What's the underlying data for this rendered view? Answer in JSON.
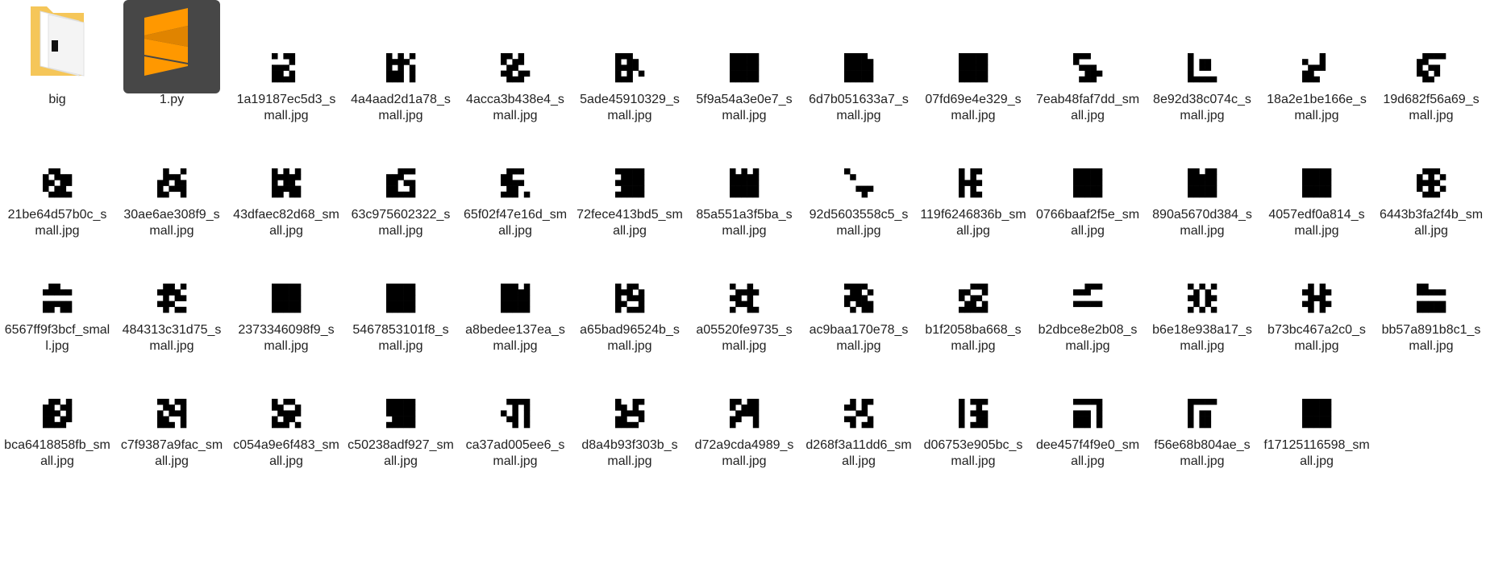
{
  "colors": {
    "app_tile": "#474747",
    "app_accent": "#ff9800",
    "folder": "#f5c659"
  },
  "items": [
    {
      "label": "big",
      "icon": "folder-icon",
      "pattern": []
    },
    {
      "label": "1.py",
      "icon": "sublime-text-icon",
      "pattern": []
    },
    {
      "label": "1a19187ec5d3_small.jpg",
      "icon": "qr-thumbnail-icon",
      "pattern": [
        1,
        0,
        1,
        1,
        0,
        0,
        0,
        0,
        1,
        0,
        1,
        1,
        1,
        0,
        0,
        1,
        1,
        0,
        1,
        0,
        1,
        1,
        1,
        1,
        0
      ]
    },
    {
      "label": "4a4aad2d1a78_small.jpg",
      "icon": "qr-thumbnail-icon",
      "pattern": [
        1,
        0,
        1,
        0,
        1,
        1,
        1,
        1,
        1,
        0,
        1,
        0,
        1,
        0,
        1,
        1,
        1,
        1,
        0,
        1,
        1,
        1,
        1,
        0,
        1
      ]
    },
    {
      "label": "4acca3b438e4_small.jpg",
      "icon": "qr-thumbnail-icon",
      "pattern": [
        1,
        1,
        0,
        1,
        0,
        1,
        0,
        1,
        1,
        0,
        0,
        1,
        1,
        0,
        0,
        1,
        1,
        0,
        1,
        1,
        0,
        1,
        1,
        1,
        0
      ]
    },
    {
      "label": "5ade45910329_small.jpg",
      "icon": "qr-thumbnail-icon",
      "pattern": [
        1,
        1,
        1,
        0,
        0,
        1,
        0,
        1,
        1,
        0,
        1,
        1,
        1,
        1,
        0,
        1,
        0,
        1,
        0,
        1,
        1,
        1,
        1,
        0,
        0
      ]
    },
    {
      "label": "5f9a54a3e0e7_small.jpg",
      "icon": "qr-thumbnail-icon",
      "pattern": [
        1,
        1,
        1,
        1,
        1,
        1,
        1,
        1,
        1,
        1,
        1,
        1,
        1,
        1,
        1,
        1,
        1,
        1,
        1,
        1,
        1,
        1,
        1,
        1,
        1
      ]
    },
    {
      "label": "6d7b051633a7_small.jpg",
      "icon": "qr-thumbnail-icon",
      "pattern": [
        1,
        1,
        1,
        1,
        0,
        1,
        1,
        1,
        1,
        1,
        1,
        1,
        1,
        1,
        1,
        1,
        1,
        1,
        1,
        1,
        1,
        1,
        1,
        1,
        1
      ]
    },
    {
      "label": "07fd69e4e329_small.jpg",
      "icon": "qr-thumbnail-icon",
      "pattern": [
        1,
        1,
        1,
        1,
        1,
        1,
        1,
        1,
        1,
        1,
        1,
        1,
        1,
        1,
        1,
        1,
        1,
        1,
        1,
        1,
        1,
        1,
        1,
        1,
        1
      ]
    },
    {
      "label": "7eab48faf7dd_small.jpg",
      "icon": "qr-thumbnail-icon",
      "pattern": [
        1,
        1,
        1,
        0,
        0,
        1,
        0,
        0,
        0,
        0,
        0,
        1,
        1,
        1,
        0,
        0,
        0,
        1,
        1,
        1,
        0,
        1,
        1,
        1,
        0
      ]
    },
    {
      "label": "8e92d38c074c_small.jpg",
      "icon": "qr-thumbnail-icon",
      "pattern": [
        1,
        0,
        0,
        0,
        0,
        1,
        0,
        1,
        1,
        0,
        1,
        0,
        1,
        1,
        0,
        1,
        0,
        0,
        0,
        0,
        1,
        1,
        1,
        1,
        1
      ]
    },
    {
      "label": "18a2e1be166e_small.jpg",
      "icon": "qr-thumbnail-icon",
      "pattern": [
        0,
        0,
        0,
        1,
        0,
        1,
        0,
        0,
        1,
        0,
        0,
        1,
        1,
        1,
        0,
        1,
        1,
        0,
        0,
        0,
        1,
        1,
        1,
        0,
        0
      ]
    },
    {
      "label": "19d682f56a69_small.jpg",
      "icon": "qr-thumbnail-icon",
      "pattern": [
        0,
        1,
        1,
        1,
        1,
        1,
        1,
        0,
        0,
        0,
        1,
        0,
        1,
        1,
        0,
        1,
        1,
        0,
        1,
        0,
        0,
        1,
        1,
        0,
        0
      ]
    },
    {
      "label": "21be64d57b0c_small.jpg",
      "icon": "qr-thumbnail-icon",
      "pattern": [
        0,
        1,
        1,
        0,
        0,
        1,
        0,
        1,
        1,
        1,
        1,
        1,
        0,
        1,
        1,
        1,
        0,
        1,
        1,
        0,
        0,
        1,
        1,
        1,
        1
      ]
    },
    {
      "label": "30ae6ae308f9_small.jpg",
      "icon": "qr-thumbnail-icon",
      "pattern": [
        0,
        1,
        0,
        0,
        1,
        0,
        1,
        1,
        1,
        0,
        1,
        1,
        0,
        1,
        1,
        1,
        0,
        1,
        1,
        1,
        1,
        1,
        0,
        0,
        1
      ]
    },
    {
      "label": "43dfaec82d68_small.jpg",
      "icon": "qr-thumbnail-icon",
      "pattern": [
        1,
        0,
        1,
        0,
        1,
        1,
        1,
        1,
        1,
        1,
        1,
        0,
        1,
        1,
        0,
        1,
        1,
        1,
        1,
        1,
        1,
        1,
        0,
        1,
        1
      ]
    },
    {
      "label": "63c975602322_small.jpg",
      "icon": "qr-thumbnail-icon",
      "pattern": [
        0,
        0,
        1,
        1,
        1,
        1,
        1,
        1,
        0,
        0,
        1,
        1,
        0,
        1,
        1,
        1,
        1,
        0,
        0,
        1,
        1,
        1,
        1,
        1,
        1
      ]
    },
    {
      "label": "65f02f47e16d_small.jpg",
      "icon": "qr-thumbnail-icon",
      "pattern": [
        0,
        1,
        1,
        1,
        0,
        1,
        1,
        0,
        0,
        0,
        1,
        1,
        1,
        1,
        0,
        0,
        1,
        1,
        0,
        0,
        1,
        1,
        1,
        0,
        1
      ]
    },
    {
      "label": "72fece413bd5_small.jpg",
      "icon": "qr-thumbnail-icon",
      "pattern": [
        1,
        1,
        1,
        1,
        1,
        0,
        1,
        1,
        1,
        1,
        1,
        1,
        1,
        1,
        1,
        0,
        1,
        1,
        1,
        1,
        1,
        1,
        1,
        1,
        1
      ]
    },
    {
      "label": "85a551a3f5ba_small.jpg",
      "icon": "qr-thumbnail-icon",
      "pattern": [
        1,
        0,
        1,
        0,
        1,
        1,
        1,
        1,
        1,
        1,
        1,
        1,
        1,
        1,
        1,
        1,
        1,
        1,
        1,
        1,
        1,
        1,
        1,
        1,
        1
      ]
    },
    {
      "label": "92d5603558c5_small.jpg",
      "icon": "qr-thumbnail-icon",
      "pattern": [
        1,
        0,
        0,
        0,
        0,
        0,
        1,
        0,
        0,
        0,
        0,
        0,
        0,
        0,
        0,
        0,
        0,
        1,
        1,
        1,
        0,
        0,
        0,
        1,
        0
      ]
    },
    {
      "label": "119f6246836b_small.jpg",
      "icon": "qr-thumbnail-icon",
      "pattern": [
        1,
        0,
        1,
        1,
        0,
        1,
        0,
        1,
        0,
        0,
        1,
        1,
        1,
        1,
        0,
        1,
        0,
        1,
        0,
        0,
        1,
        0,
        1,
        1,
        0
      ]
    },
    {
      "label": "0766baaf2f5e_small.jpg",
      "icon": "qr-thumbnail-icon",
      "pattern": [
        1,
        1,
        1,
        1,
        1,
        1,
        1,
        1,
        1,
        1,
        1,
        1,
        1,
        1,
        1,
        1,
        1,
        1,
        1,
        1,
        1,
        1,
        1,
        1,
        1
      ]
    },
    {
      "label": "890a5670d384_small.jpg",
      "icon": "qr-thumbnail-icon",
      "pattern": [
        1,
        1,
        0,
        1,
        1,
        1,
        1,
        1,
        1,
        1,
        1,
        1,
        1,
        1,
        1,
        1,
        1,
        1,
        1,
        1,
        1,
        1,
        1,
        1,
        1
      ]
    },
    {
      "label": "4057edf0a814_small.jpg",
      "icon": "qr-thumbnail-icon",
      "pattern": [
        1,
        1,
        1,
        1,
        1,
        1,
        1,
        1,
        1,
        1,
        1,
        1,
        1,
        1,
        1,
        1,
        1,
        1,
        1,
        1,
        1,
        1,
        1,
        1,
        1
      ]
    },
    {
      "label": "6443b3fa2f4b_small.jpg",
      "icon": "qr-thumbnail-icon",
      "pattern": [
        0,
        1,
        1,
        1,
        0,
        1,
        0,
        1,
        0,
        1,
        1,
        1,
        1,
        1,
        0,
        1,
        0,
        1,
        0,
        1,
        0,
        1,
        1,
        1,
        0
      ]
    },
    {
      "label": "6567ff9f3bcf_small.jpg",
      "icon": "qr-thumbnail-icon",
      "pattern": [
        0,
        1,
        1,
        0,
        0,
        1,
        1,
        1,
        1,
        1,
        0,
        0,
        0,
        0,
        0,
        1,
        1,
        1,
        1,
        1,
        1,
        1,
        0,
        1,
        1
      ]
    },
    {
      "label": "484313c31d75_small.jpg",
      "icon": "qr-thumbnail-icon",
      "pattern": [
        0,
        1,
        1,
        0,
        1,
        1,
        1,
        1,
        1,
        0,
        0,
        1,
        0,
        1,
        1,
        1,
        1,
        1,
        0,
        0,
        0,
        1,
        0,
        1,
        1
      ]
    },
    {
      "label": "2373346098f9_small.jpg",
      "icon": "qr-thumbnail-icon",
      "pattern": [
        1,
        1,
        1,
        1,
        1,
        1,
        1,
        1,
        1,
        1,
        1,
        1,
        1,
        1,
        1,
        1,
        1,
        1,
        1,
        1,
        1,
        1,
        1,
        1,
        1
      ]
    },
    {
      "label": "5467853101f8_small.jpg",
      "icon": "qr-thumbnail-icon",
      "pattern": [
        1,
        1,
        1,
        1,
        1,
        1,
        1,
        1,
        1,
        1,
        1,
        1,
        1,
        1,
        1,
        1,
        1,
        1,
        1,
        1,
        1,
        1,
        1,
        1,
        1
      ]
    },
    {
      "label": "a8bedee137ea_small.jpg",
      "icon": "qr-thumbnail-icon",
      "pattern": [
        1,
        1,
        1,
        0,
        1,
        1,
        1,
        1,
        1,
        1,
        1,
        1,
        1,
        1,
        1,
        1,
        1,
        1,
        1,
        1,
        1,
        1,
        1,
        1,
        1
      ]
    },
    {
      "label": "a65bad96524b_small.jpg",
      "icon": "qr-thumbnail-icon",
      "pattern": [
        1,
        0,
        1,
        1,
        0,
        1,
        1,
        1,
        0,
        1,
        1,
        0,
        1,
        1,
        1,
        1,
        1,
        0,
        0,
        1,
        1,
        0,
        1,
        1,
        1
      ]
    },
    {
      "label": "a05520fe9735_small.jpg",
      "icon": "qr-thumbnail-icon",
      "pattern": [
        1,
        0,
        0,
        1,
        0,
        0,
        1,
        1,
        1,
        1,
        1,
        1,
        0,
        1,
        0,
        0,
        1,
        1,
        1,
        0,
        1,
        0,
        0,
        1,
        1
      ]
    },
    {
      "label": "ac9baa170e78_small.jpg",
      "icon": "qr-thumbnail-icon",
      "pattern": [
        1,
        1,
        1,
        1,
        0,
        0,
        1,
        1,
        0,
        1,
        1,
        1,
        1,
        1,
        0,
        1,
        0,
        1,
        1,
        1,
        0,
        1,
        0,
        1,
        1
      ]
    },
    {
      "label": "b1f2058ba668_small.jpg",
      "icon": "qr-thumbnail-icon",
      "pattern": [
        0,
        0,
        1,
        1,
        1,
        1,
        1,
        0,
        0,
        1,
        1,
        0,
        1,
        1,
        0,
        0,
        1,
        1,
        0,
        1,
        1,
        1,
        1,
        1,
        1
      ]
    },
    {
      "label": "b2dbce8e2b08_small.jpg",
      "icon": "qr-thumbnail-icon",
      "pattern": [
        0,
        0,
        1,
        1,
        1,
        1,
        1,
        1,
        0,
        0,
        0,
        0,
        0,
        0,
        0,
        1,
        1,
        1,
        1,
        1,
        0,
        0,
        0,
        0,
        0
      ]
    },
    {
      "label": "b6e18e938a17_small.jpg",
      "icon": "qr-thumbnail-icon",
      "pattern": [
        1,
        0,
        1,
        0,
        1,
        0,
        1,
        0,
        1,
        0,
        1,
        1,
        0,
        1,
        1,
        0,
        1,
        0,
        1,
        0,
        1,
        0,
        1,
        0,
        1
      ]
    },
    {
      "label": "b73bc467a2c0_small.jpg",
      "icon": "qr-thumbnail-icon",
      "pattern": [
        0,
        1,
        0,
        1,
        0,
        1,
        1,
        0,
        1,
        1,
        0,
        1,
        1,
        1,
        0,
        1,
        1,
        0,
        1,
        1,
        0,
        1,
        0,
        1,
        0
      ]
    },
    {
      "label": "bb57a891b8c1_small.jpg",
      "icon": "qr-thumbnail-icon",
      "pattern": [
        1,
        1,
        0,
        0,
        0,
        1,
        1,
        1,
        1,
        1,
        0,
        0,
        0,
        0,
        0,
        1,
        1,
        1,
        1,
        1,
        1,
        1,
        1,
        1,
        1
      ]
    },
    {
      "label": "bca6418858fb_small.jpg",
      "icon": "qr-thumbnail-icon",
      "pattern": [
        0,
        1,
        1,
        0,
        1,
        1,
        1,
        0,
        1,
        1,
        1,
        1,
        1,
        0,
        1,
        1,
        1,
        0,
        1,
        1,
        1,
        1,
        1,
        1,
        0
      ]
    },
    {
      "label": "c7f9387a9fac_small.jpg",
      "icon": "qr-thumbnail-icon",
      "pattern": [
        1,
        1,
        0,
        1,
        1,
        0,
        1,
        1,
        0,
        1,
        1,
        0,
        1,
        1,
        1,
        1,
        1,
        0,
        0,
        1,
        1,
        1,
        1,
        0,
        1
      ]
    },
    {
      "label": "c054a9e6f483_small.jpg",
      "icon": "qr-thumbnail-icon",
      "pattern": [
        1,
        0,
        1,
        1,
        0,
        1,
        1,
        0,
        0,
        1,
        0,
        1,
        1,
        1,
        1,
        1,
        0,
        1,
        1,
        0,
        1,
        1,
        1,
        0,
        1
      ]
    },
    {
      "label": "c50238adf927_small.jpg",
      "icon": "qr-thumbnail-icon",
      "pattern": [
        1,
        1,
        1,
        1,
        1,
        1,
        1,
        1,
        1,
        1,
        1,
        1,
        1,
        1,
        1,
        0,
        1,
        1,
        1,
        1,
        1,
        1,
        1,
        1,
        1
      ]
    },
    {
      "label": "ca37ad005ee6_small.jpg",
      "icon": "qr-thumbnail-icon",
      "pattern": [
        0,
        1,
        1,
        1,
        1,
        0,
        0,
        1,
        0,
        1,
        1,
        0,
        1,
        0,
        1,
        0,
        1,
        1,
        0,
        1,
        0,
        0,
        1,
        0,
        1
      ]
    },
    {
      "label": "d8a4b93f303b_small.jpg",
      "icon": "qr-thumbnail-icon",
      "pattern": [
        1,
        0,
        0,
        1,
        1,
        1,
        1,
        0,
        1,
        0,
        0,
        1,
        1,
        1,
        1,
        1,
        1,
        0,
        0,
        1,
        1,
        1,
        1,
        1,
        0
      ]
    },
    {
      "label": "d72a9cda4989_small.jpg",
      "icon": "qr-thumbnail-icon",
      "pattern": [
        1,
        1,
        0,
        1,
        1,
        1,
        0,
        1,
        1,
        1,
        0,
        1,
        1,
        1,
        1,
        1,
        1,
        0,
        0,
        1,
        1,
        0,
        0,
        0,
        1
      ]
    },
    {
      "label": "d268f3a11dd6_small.jpg",
      "icon": "qr-thumbnail-icon",
      "pattern": [
        0,
        1,
        0,
        1,
        1,
        1,
        1,
        0,
        1,
        0,
        0,
        0,
        1,
        1,
        0,
        1,
        1,
        0,
        0,
        1,
        0,
        1,
        0,
        1,
        1
      ]
    },
    {
      "label": "d06753e905bc_small.jpg",
      "icon": "qr-thumbnail-icon",
      "pattern": [
        1,
        0,
        1,
        1,
        1,
        1,
        0,
        0,
        1,
        0,
        1,
        0,
        1,
        1,
        1,
        1,
        0,
        0,
        1,
        1,
        1,
        0,
        1,
        1,
        1
      ]
    },
    {
      "label": "dee457f4f9e0_small.jpg",
      "icon": "qr-thumbnail-icon",
      "pattern": [
        1,
        1,
        1,
        1,
        1,
        0,
        0,
        0,
        0,
        1,
        1,
        1,
        1,
        0,
        1,
        1,
        1,
        1,
        0,
        1,
        1,
        1,
        1,
        0,
        1
      ]
    },
    {
      "label": "f56e68b804ae_small.jpg",
      "icon": "qr-thumbnail-icon",
      "pattern": [
        1,
        1,
        1,
        1,
        1,
        1,
        0,
        0,
        0,
        0,
        1,
        0,
        1,
        1,
        0,
        1,
        0,
        1,
        1,
        0,
        1,
        0,
        1,
        1,
        0
      ]
    },
    {
      "label": "f17125116598_small.jpg",
      "icon": "qr-thumbnail-icon",
      "pattern": [
        1,
        1,
        1,
        1,
        1,
        1,
        1,
        1,
        1,
        1,
        1,
        1,
        1,
        1,
        1,
        1,
        1,
        1,
        1,
        1,
        1,
        1,
        1,
        1,
        1
      ]
    }
  ]
}
